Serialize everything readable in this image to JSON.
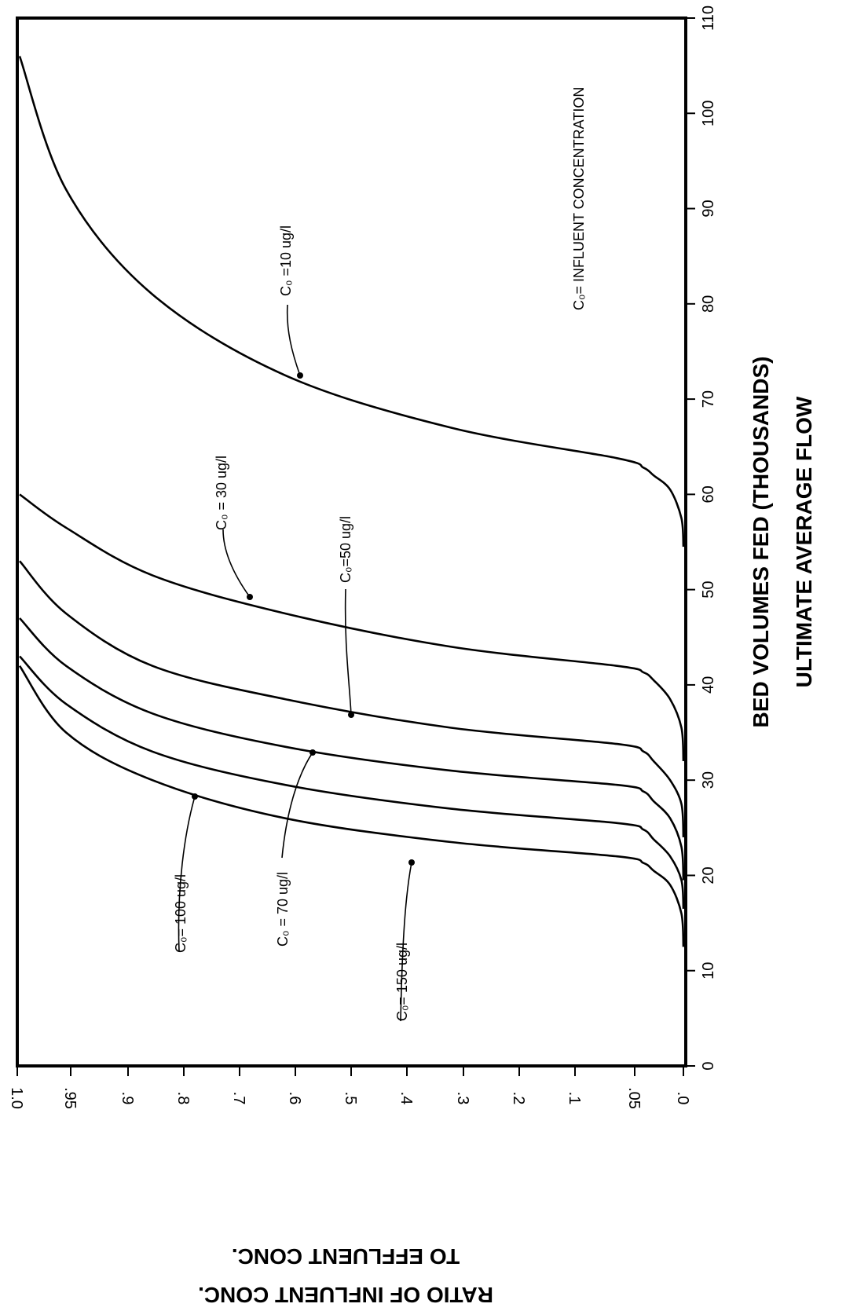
{
  "chart_data": {
    "type": "line",
    "xlabel": "BED VOLUMES FED (THOUSANDS)",
    "xlabel_2": "ULTIMATE AVERAGE FLOW",
    "ylabel": "RATIO OF INFLUENT CONC.",
    "ylabel_2": "TO EFFLUENT CONC.",
    "annotation": "C₀= INFLUENT CONCENTRATION",
    "xlim": [
      0,
      110
    ],
    "x_ticks": [
      0,
      10,
      20,
      30,
      40,
      50,
      60,
      70,
      80,
      90,
      100,
      110
    ],
    "x_tick_labels": [
      "0",
      "10",
      "20",
      "30",
      "40",
      "50",
      "60",
      "70",
      "80",
      "90",
      "100",
      "110"
    ],
    "y_tick_labels": [
      ".0",
      ".05",
      ".1",
      ".2",
      ".3",
      ".4",
      ".5",
      ".6",
      ".7",
      ".8",
      ".9",
      ".95",
      "1.0"
    ],
    "grid": false,
    "orientation": "rotated 90° clockwise",
    "series": [
      {
        "name": "C₀= 150 ug/l",
        "x": [
          12.5,
          16,
          19,
          20.5,
          21.3,
          22,
          23.5,
          26,
          30,
          35,
          42
        ],
        "y": [
          0.0,
          0.003,
          0.02,
          0.045,
          0.06,
          0.1,
          0.35,
          0.6,
          0.8,
          0.93,
          1.0
        ]
      },
      {
        "name": "C₀= 100 ug/l",
        "x": [
          16.5,
          19.5,
          22,
          23.8,
          24.8,
          25.5,
          27,
          29.5,
          33,
          38,
          43
        ],
        "y": [
          0.0,
          0.003,
          0.02,
          0.045,
          0.06,
          0.1,
          0.35,
          0.6,
          0.8,
          0.93,
          1.0
        ]
      },
      {
        "name": "C₀ = 70 ug/l",
        "x": [
          19.5,
          23,
          26,
          27.8,
          28.8,
          29.5,
          31,
          33.5,
          37,
          42,
          47
        ],
        "y": [
          0.0,
          0.003,
          0.02,
          0.045,
          0.06,
          0.1,
          0.35,
          0.6,
          0.8,
          0.93,
          1.0
        ]
      },
      {
        "name": "C₀=50 ug/l",
        "x": [
          24,
          27.5,
          30,
          32,
          33,
          33.8,
          35.5,
          38.5,
          42,
          47.5,
          53
        ],
        "y": [
          0.0,
          0.003,
          0.02,
          0.045,
          0.06,
          0.1,
          0.35,
          0.6,
          0.8,
          0.93,
          1.0
        ]
      },
      {
        "name": "C₀ = 30 ug/l",
        "x": [
          32,
          35.5,
          38.5,
          40.5,
          41.3,
          42,
          44,
          47.5,
          51.5,
          56.5,
          60
        ],
        "y": [
          0.0,
          0.003,
          0.02,
          0.045,
          0.06,
          0.1,
          0.35,
          0.6,
          0.8,
          0.93,
          1.0
        ]
      },
      {
        "name": "C₀ =10 ug/l",
        "x": [
          54.5,
          57.5,
          60.5,
          62,
          62.8,
          63.8,
          67,
          72.5,
          81,
          92,
          106
        ],
        "y": [
          0.0,
          0.003,
          0.02,
          0.045,
          0.06,
          0.1,
          0.35,
          0.6,
          0.8,
          0.93,
          1.0
        ]
      }
    ]
  }
}
